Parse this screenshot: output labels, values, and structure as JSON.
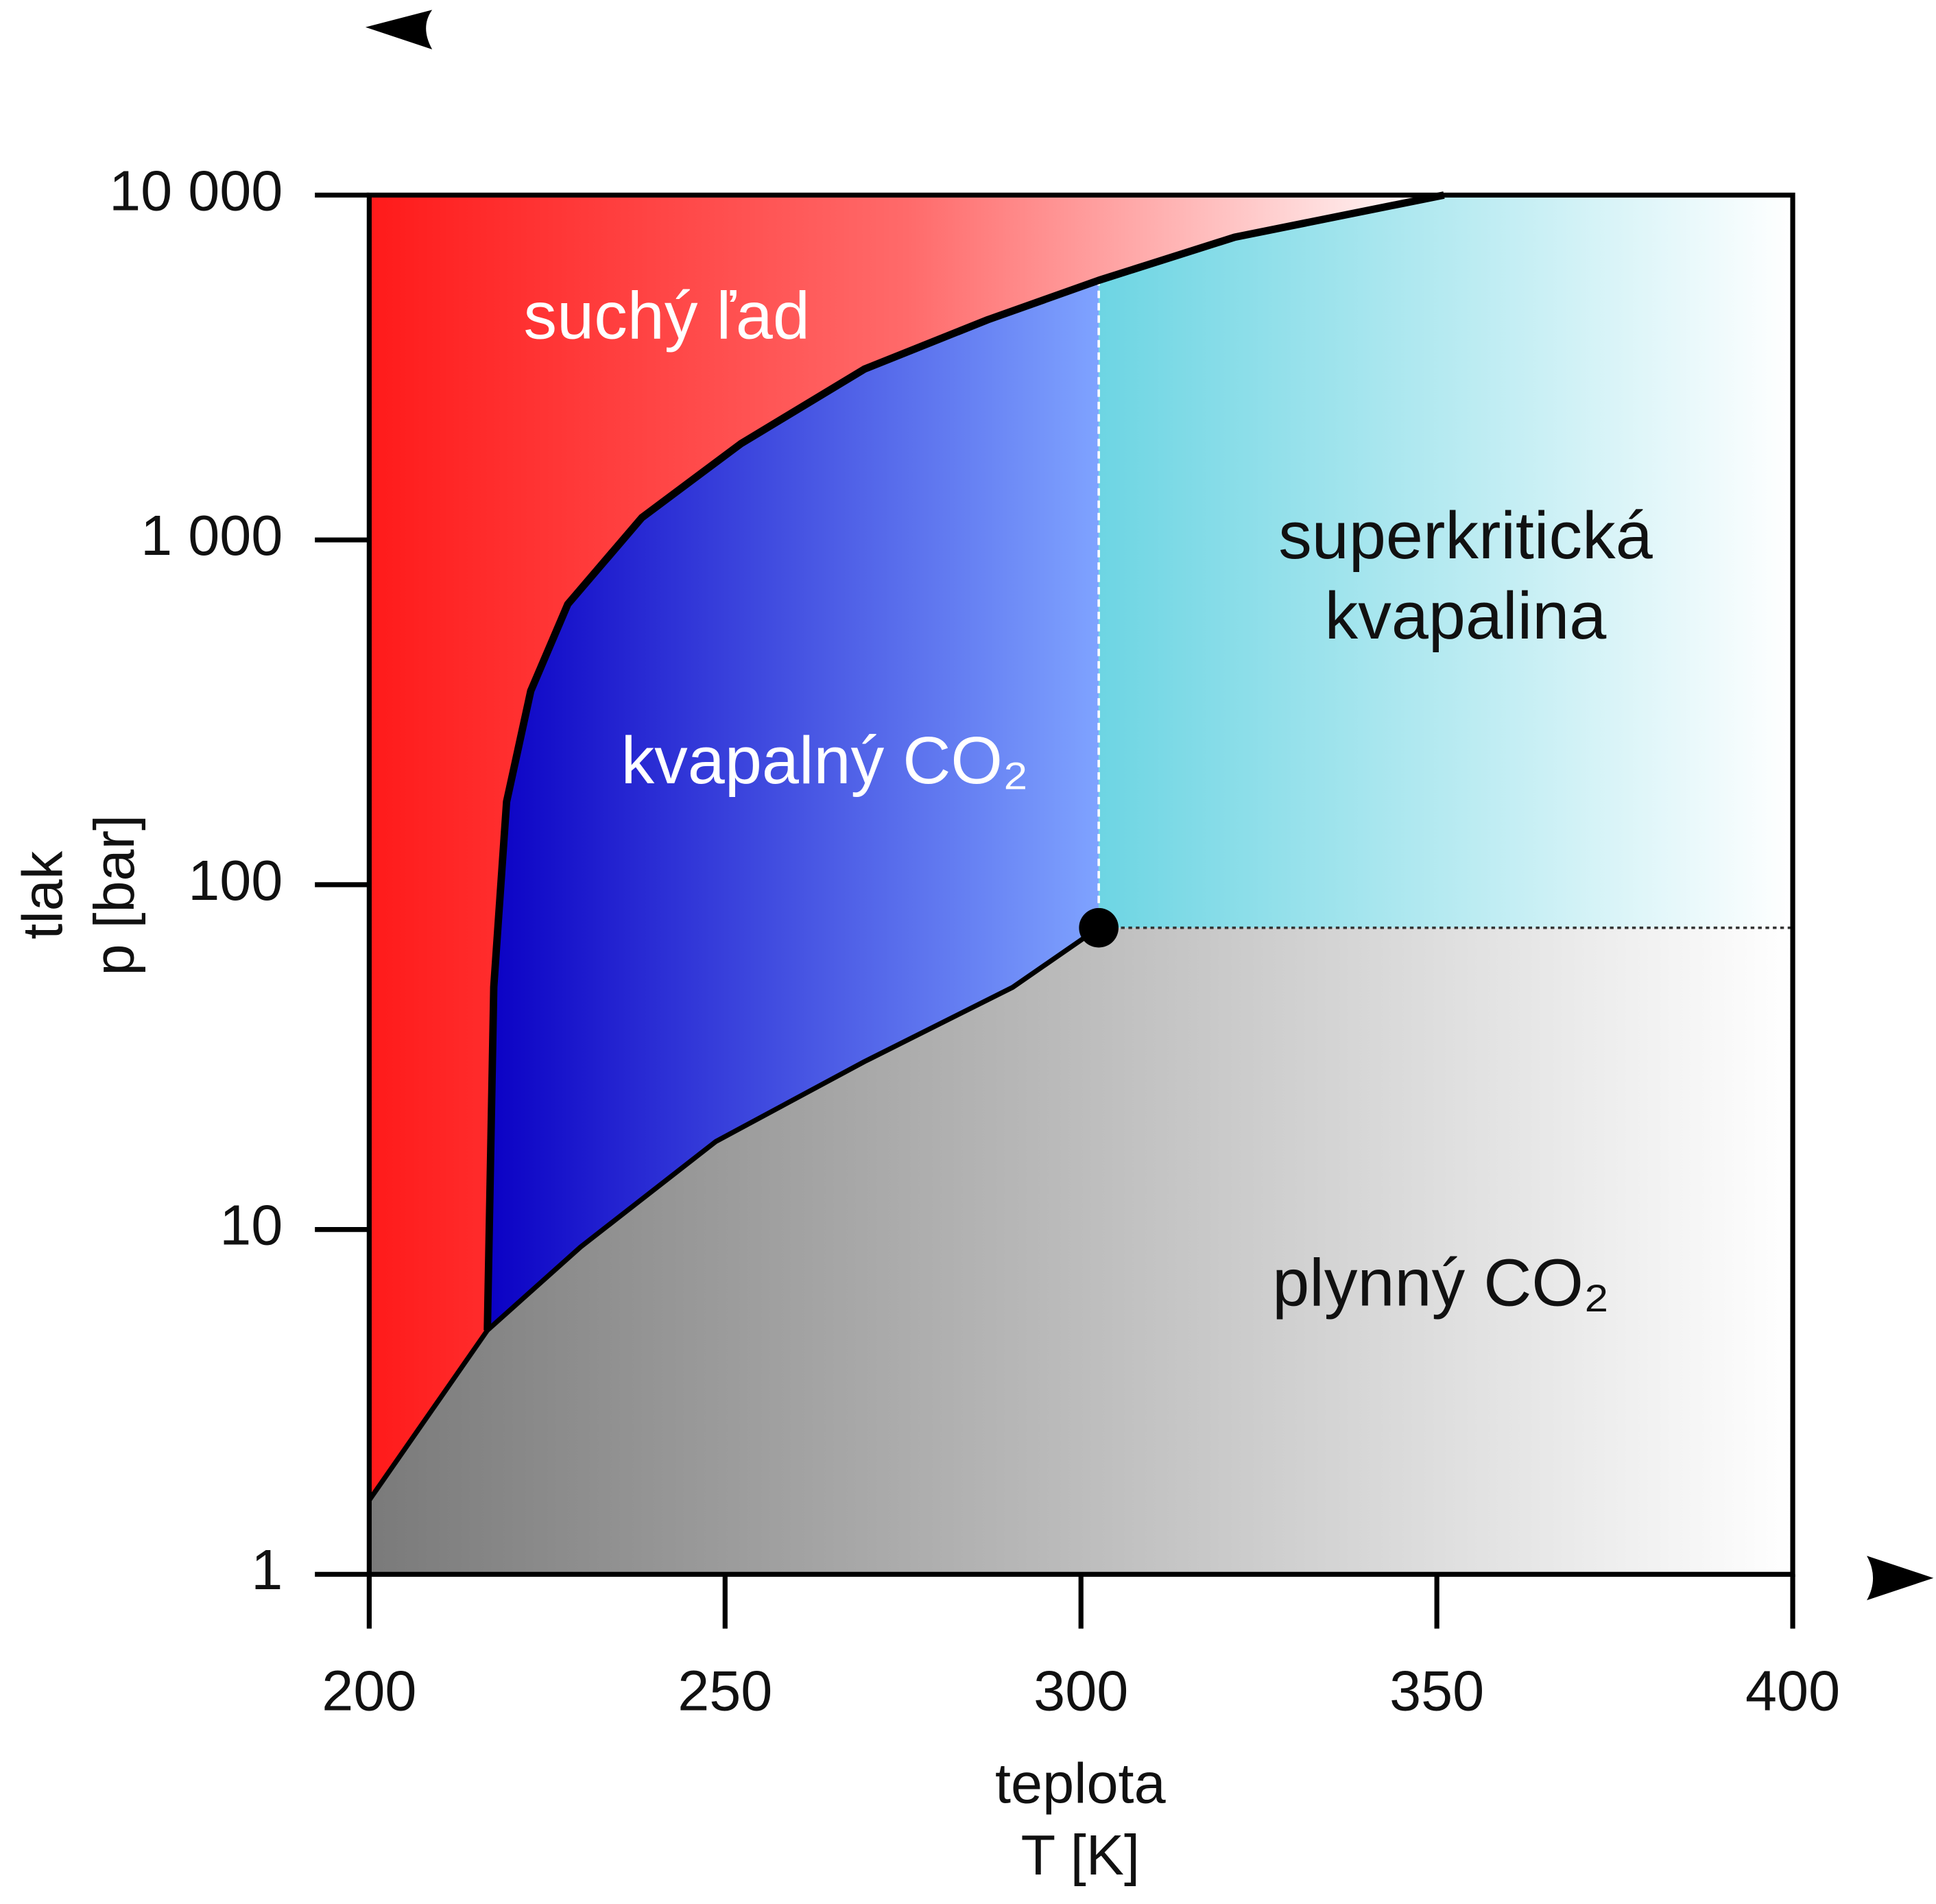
{
  "chart_data": {
    "type": "line",
    "y_log": true,
    "xlim": [
      200,
      400
    ],
    "ylim": [
      1,
      10000
    ],
    "xticks": [
      200,
      250,
      300,
      350,
      400
    ],
    "yticks": [
      1,
      10,
      100,
      {
        "value": 1000,
        "label": "1 000"
      },
      {
        "value": 10000,
        "label": "10 000"
      }
    ],
    "xlabel": [
      "teplota",
      "T [K]"
    ],
    "ylabel": [
      "tlak",
      "p [bar]"
    ],
    "annotations": [
      "suchý ľad",
      "kvapalný CO₂",
      "superkritická",
      "kvapalina",
      "plynný CO₂"
    ],
    "series": [
      {
        "color": "#000000",
        "x": [
          200,
          216.6
        ],
        "values": [
          1.64,
          5.1
        ]
      },
      {
        "color": "#000000",
        "x": [
          216.6,
          217.5,
          219.3,
          222.7,
          227.9,
          238.3,
          252.2,
          269.6,
          286.9,
          302.5,
          321.6,
          351
        ],
        "values": [
          5.1,
          50.5,
          174,
          365,
          651,
          1160,
          1900,
          3130,
          4350,
          5660,
          7550,
          10000
        ]
      },
      {
        "color": "#000000",
        "x": [
          216.6,
          229.7,
          248.7,
          269.6,
          290.4,
          302.5
        ],
        "values": [
          5.1,
          8.9,
          18,
          30.7,
          50.4,
          75
        ]
      },
      {
        "color": "#000000",
        "marker": "dot",
        "x": [
          302.5
        ],
        "values": [
          75
        ]
      }
    ]
  }
}
